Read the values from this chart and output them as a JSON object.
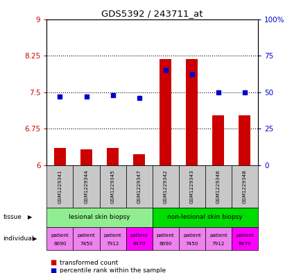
{
  "title": "GDS5392 / 243711_at",
  "samples": [
    "GSM1229341",
    "GSM1229344",
    "GSM1229345",
    "GSM1229347",
    "GSM1229342",
    "GSM1229343",
    "GSM1229346",
    "GSM1229348"
  ],
  "red_values": [
    6.35,
    6.32,
    6.35,
    6.22,
    8.18,
    8.18,
    7.02,
    7.02
  ],
  "blue_values": [
    47,
    47,
    48,
    46,
    65,
    62,
    50,
    50
  ],
  "ymin": 6.0,
  "ymax": 9.0,
  "yticks": [
    6.0,
    6.75,
    7.5,
    8.25,
    9.0
  ],
  "ytick_labels": [
    "6",
    "6.75",
    "7.5",
    "8.25",
    "9"
  ],
  "y2min": 0,
  "y2max": 100,
  "y2ticks": [
    0,
    25,
    50,
    75,
    100
  ],
  "y2tick_labels": [
    "0",
    "25",
    "50",
    "75",
    "100%"
  ],
  "tissue_groups": [
    {
      "label": "lesional skin biopsy",
      "start": 0,
      "end": 4,
      "color": "#90EE90"
    },
    {
      "label": "non-lesional skin biopsy",
      "start": 4,
      "end": 8,
      "color": "#00DD00"
    }
  ],
  "individual_labels": [
    [
      "patient",
      "6690"
    ],
    [
      "patient",
      "7450"
    ],
    [
      "patient",
      "7912"
    ],
    [
      "patient",
      "8470"
    ],
    [
      "patient",
      "6690"
    ],
    [
      "patient",
      "7450"
    ],
    [
      "patient",
      "7912"
    ],
    [
      "patient",
      "8470"
    ]
  ],
  "individual_colors": [
    "#EE82EE",
    "#EE82EE",
    "#EE82EE",
    "#FF00FF",
    "#EE82EE",
    "#EE82EE",
    "#EE82EE",
    "#FF00FF"
  ],
  "red_color": "#CC0000",
  "blue_color": "#0000CC",
  "bar_width": 0.45,
  "marker_size": 5,
  "gsm_bg": "#C8C8C8",
  "fig_bg": "#FFFFFF"
}
